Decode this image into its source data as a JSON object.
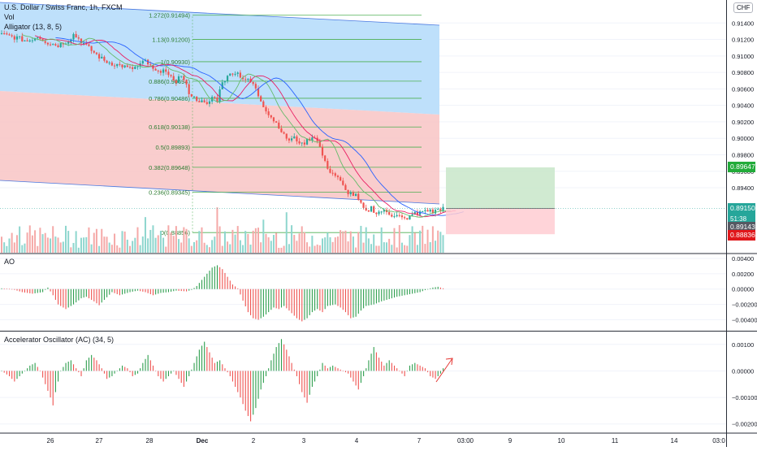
{
  "header": {
    "symbol_title": "U.S. Dollar / Swiss Franc, 1h, FXCM",
    "volume_label": "Vol",
    "alligator_label": "Alligator (13, 8, 5)",
    "currency": "CHF"
  },
  "colors": {
    "up": "#26a69a",
    "down": "#ef5350",
    "ao_up": "#2e9e4e",
    "ao_down": "#ef5350",
    "channel_blue": "#bbdefb",
    "channel_red": "#f8c4c4",
    "fib_line": "#4caf50",
    "jaw": "#2962ff",
    "teeth": "#e91e63",
    "lips": "#66bb6a",
    "arrow": "#e53935"
  },
  "price_tags": {
    "target": "0.89647",
    "current": "0.89150",
    "countdown": "51:38",
    "bid": "0.89143",
    "stop": "0.88836"
  },
  "chart_data": [
    {
      "type": "candlestick",
      "title": "U.S. Dollar / Swiss Franc, 1h, FXCM",
      "y_ticks": [
        "0.91400",
        "0.91200",
        "0.91000",
        "0.90800",
        "0.90600",
        "0.90400",
        "0.90200",
        "0.90000",
        "0.89800",
        "0.89600",
        "0.89400"
      ],
      "x_ticks": [
        "26",
        "27",
        "28",
        "Dec",
        "2",
        "3",
        "4",
        "7",
        "03:00",
        "9",
        "10",
        "11",
        "14",
        "03:0"
      ],
      "ylim": [
        0.887,
        0.916
      ],
      "close_path": [
        [
          0,
          0.9126
        ],
        [
          6,
          0.9122
        ],
        [
          10,
          0.9118
        ],
        [
          14,
          0.9124
        ],
        [
          18,
          0.9116
        ],
        [
          22,
          0.9113
        ],
        [
          26,
          0.9119
        ],
        [
          28,
          0.9126
        ],
        [
          30,
          0.9121
        ],
        [
          33,
          0.9112
        ],
        [
          36,
          0.9104
        ],
        [
          40,
          0.9094
        ],
        [
          44,
          0.909
        ],
        [
          47,
          0.9088
        ],
        [
          50,
          0.9084
        ],
        [
          53,
          0.9087
        ],
        [
          56,
          0.9094
        ],
        [
          59,
          0.9083
        ],
        [
          61,
          0.9079
        ],
        [
          63,
          0.9086
        ],
        [
          65,
          0.9074
        ],
        [
          68,
          0.907
        ],
        [
          70,
          0.9077
        ],
        [
          73,
          0.9056
        ],
        [
          75,
          0.9049
        ],
        [
          77,
          0.9046
        ],
        [
          80,
          0.904
        ],
        [
          82,
          0.905
        ],
        [
          84,
          0.9047
        ],
        [
          85,
          0.9058
        ],
        [
          86,
          0.907
        ],
        [
          88,
          0.9074
        ],
        [
          90,
          0.9081
        ],
        [
          92,
          0.9079
        ],
        [
          94,
          0.9073
        ],
        [
          96,
          0.907
        ],
        [
          98,
          0.9066
        ],
        [
          100,
          0.9052
        ],
        [
          102,
          0.904
        ],
        [
          104,
          0.903
        ],
        [
          106,
          0.9022
        ],
        [
          108,
          0.9015
        ],
        [
          110,
          0.9003
        ],
        [
          112,
          0.8998
        ],
        [
          114,
          0.9
        ],
        [
          116,
          0.8996
        ],
        [
          117,
          0.8992
        ],
        [
          118,
          0.8995
        ],
        [
          120,
          0.9
        ],
        [
          122,
          0.9003
        ],
        [
          124,
          0.8989
        ],
        [
          126,
          0.897
        ],
        [
          128,
          0.896
        ],
        [
          130,
          0.8955
        ],
        [
          132,
          0.8947
        ],
        [
          134,
          0.8936
        ],
        [
          136,
          0.8933
        ],
        [
          138,
          0.893
        ],
        [
          140,
          0.8919
        ],
        [
          142,
          0.891
        ],
        [
          144,
          0.8916
        ],
        [
          146,
          0.8909
        ],
        [
          148,
          0.8912
        ],
        [
          150,
          0.891
        ],
        [
          152,
          0.8907
        ],
        [
          154,
          0.8908
        ],
        [
          156,
          0.8903
        ],
        [
          158,
          0.89
        ],
        [
          160,
          0.891
        ],
        [
          162,
          0.8907
        ],
        [
          164,
          0.8912
        ],
        [
          166,
          0.8913
        ],
        [
          168,
          0.891
        ],
        [
          170,
          0.8914
        ],
        [
          172,
          0.8915
        ]
      ],
      "fibonacci": [
        {
          "label": "1.272(0.91494)",
          "value": 0.91494
        },
        {
          "label": "1.13(0.91200)",
          "value": 0.912
        },
        {
          "label": "1(0.90930)",
          "value": 0.9093
        },
        {
          "label": "0.886(0.90694)",
          "value": 0.90694
        },
        {
          "label": "0.786(0.90486)",
          "value": 0.90486
        },
        {
          "label": "0.618(0.90138)",
          "value": 0.90138
        },
        {
          "label": "0.5(0.89893)",
          "value": 0.89893
        },
        {
          "label": "0.382(0.89648)",
          "value": 0.89648
        },
        {
          "label": "0.236(0.89345)",
          "value": 0.89345
        },
        {
          "label": "0(0.88856)",
          "value": 0.88856
        }
      ],
      "position": {
        "entry": 0.8915,
        "target": 0.89647,
        "stop": 0.88836
      }
    },
    {
      "type": "bar",
      "title": "AO",
      "y_ticks": [
        "0.00400",
        "0.00200",
        "0.00000",
        "−0.00200",
        "−0.00400"
      ],
      "ylim": [
        -0.005,
        0.0041
      ],
      "values_path": [
        [
          0,
          0.0001
        ],
        [
          4,
          0.0
        ],
        [
          8,
          -0.0004
        ],
        [
          12,
          -0.0006
        ],
        [
          16,
          -0.0004
        ],
        [
          18,
          0.0002
        ],
        [
          20,
          -0.0008
        ],
        [
          22,
          -0.002
        ],
        [
          25,
          -0.0026
        ],
        [
          28,
          -0.002
        ],
        [
          31,
          -0.0012
        ],
        [
          33,
          -0.001
        ],
        [
          36,
          -0.0016
        ],
        [
          38,
          -0.0021
        ],
        [
          40,
          -0.0014
        ],
        [
          43,
          -0.0004
        ],
        [
          46,
          -0.0008
        ],
        [
          50,
          -0.0004
        ],
        [
          53,
          -0.0002
        ],
        [
          56,
          -0.0004
        ],
        [
          59,
          -0.0008
        ],
        [
          62,
          -0.0005
        ],
        [
          65,
          -0.0004
        ],
        [
          68,
          -0.0002
        ],
        [
          72,
          -0.0003
        ],
        [
          74,
          -0.0001
        ],
        [
          76,
          0.0004
        ],
        [
          78,
          0.0012
        ],
        [
          80,
          0.002
        ],
        [
          82,
          0.0028
        ],
        [
          84,
          0.0031
        ],
        [
          86,
          0.0026
        ],
        [
          88,
          0.0016
        ],
        [
          90,
          0.0006
        ],
        [
          92,
          0.0001
        ],
        [
          94,
          -0.0015
        ],
        [
          96,
          -0.003
        ],
        [
          98,
          -0.0038
        ],
        [
          100,
          -0.004
        ],
        [
          102,
          -0.0036
        ],
        [
          104,
          -0.003
        ],
        [
          106,
          -0.0024
        ],
        [
          108,
          -0.0026
        ],
        [
          110,
          -0.0022
        ],
        [
          112,
          -0.0028
        ],
        [
          115,
          -0.0038
        ],
        [
          117,
          -0.0042
        ],
        [
          119,
          -0.0038
        ],
        [
          121,
          -0.003
        ],
        [
          123,
          -0.0026
        ],
        [
          125,
          -0.003
        ],
        [
          127,
          -0.0022
        ],
        [
          130,
          -0.002
        ],
        [
          132,
          -0.0024
        ],
        [
          134,
          -0.003
        ],
        [
          136,
          -0.0038
        ],
        [
          138,
          -0.0036
        ],
        [
          140,
          -0.0028
        ],
        [
          142,
          -0.0022
        ],
        [
          145,
          -0.002
        ],
        [
          148,
          -0.0016
        ],
        [
          151,
          -0.0013
        ],
        [
          154,
          -0.001
        ],
        [
          157,
          -0.0008
        ],
        [
          160,
          -0.0006
        ],
        [
          163,
          -0.0004
        ],
        [
          166,
          0.0
        ],
        [
          168,
          0.0002
        ],
        [
          170,
          0.0003
        ],
        [
          172,
          0.0001
        ]
      ]
    },
    {
      "type": "bar",
      "title": "Accelerator Oscillator (AC) (34, 5)",
      "y_ticks": [
        "0.00100",
        "0.00000",
        "−0.00100",
        "−0.00200"
      ],
      "ylim": [
        -0.0021,
        0.0013
      ],
      "values_path": [
        [
          0,
          0.0
        ],
        [
          3,
          -0.0002
        ],
        [
          5,
          -0.0004
        ],
        [
          7,
          -0.0002
        ],
        [
          9,
          0.0
        ],
        [
          11,
          0.0002
        ],
        [
          13,
          0.0003
        ],
        [
          15,
          0.0
        ],
        [
          17,
          -0.0005
        ],
        [
          19,
          -0.001
        ],
        [
          20,
          -0.0013
        ],
        [
          21,
          -0.0008
        ],
        [
          23,
          0.0
        ],
        [
          25,
          0.0003
        ],
        [
          27,
          0.0004
        ],
        [
          29,
          0.0001
        ],
        [
          31,
          -0.0002
        ],
        [
          33,
          0.0004
        ],
        [
          35,
          0.0006
        ],
        [
          37,
          0.0004
        ],
        [
          39,
          0.0001
        ],
        [
          41,
          -0.0003
        ],
        [
          43,
          -0.0002
        ],
        [
          45,
          0.0
        ],
        [
          47,
          0.0002
        ],
        [
          49,
          0.0001
        ],
        [
          51,
          -0.0002
        ],
        [
          53,
          -0.0001
        ],
        [
          55,
          0.0003
        ],
        [
          57,
          0.0006
        ],
        [
          59,
          0.0002
        ],
        [
          61,
          -0.0002
        ],
        [
          63,
          -0.0004
        ],
        [
          65,
          -0.0002
        ],
        [
          67,
          0.0
        ],
        [
          69,
          -0.0003
        ],
        [
          71,
          -0.0006
        ],
        [
          73,
          -0.0002
        ],
        [
          75,
          0.0003
        ],
        [
          77,
          0.0008
        ],
        [
          79,
          0.0011
        ],
        [
          81,
          0.0007
        ],
        [
          83,
          0.0003
        ],
        [
          85,
          0.0004
        ],
        [
          87,
          0.0001
        ],
        [
          89,
          -0.0002
        ],
        [
          91,
          -0.0006
        ],
        [
          93,
          -0.001
        ],
        [
          95,
          -0.0015
        ],
        [
          97,
          -0.0019
        ],
        [
          99,
          -0.0014
        ],
        [
          101,
          -0.0007
        ],
        [
          103,
          -0.0002
        ],
        [
          105,
          0.0004
        ],
        [
          107,
          0.0009
        ],
        [
          109,
          0.0012
        ],
        [
          111,
          0.0008
        ],
        [
          113,
          0.0003
        ],
        [
          115,
          -0.0002
        ],
        [
          117,
          -0.0008
        ],
        [
          119,
          -0.0012
        ],
        [
          121,
          -0.0006
        ],
        [
          123,
          -0.0002
        ],
        [
          125,
          0.0003
        ],
        [
          127,
          0.0001
        ],
        [
          129,
          0.0002
        ],
        [
          131,
          0.0001
        ],
        [
          133,
          0.0
        ],
        [
          135,
          -0.0001
        ],
        [
          137,
          -0.0004
        ],
        [
          139,
          -0.0007
        ],
        [
          141,
          -0.0002
        ],
        [
          143,
          0.0004
        ],
        [
          145,
          0.0009
        ],
        [
          147,
          0.0005
        ],
        [
          149,
          0.0002
        ],
        [
          151,
          0.0004
        ],
        [
          153,
          0.0002
        ],
        [
          155,
          0.0
        ],
        [
          157,
          -0.0002
        ],
        [
          159,
          0.0002
        ],
        [
          161,
          0.0003
        ],
        [
          163,
          0.0002
        ],
        [
          165,
          0.0001
        ],
        [
          167,
          -0.0002
        ],
        [
          169,
          -0.0003
        ],
        [
          171,
          -0.0001
        ],
        [
          172,
          0.0001
        ]
      ]
    }
  ]
}
